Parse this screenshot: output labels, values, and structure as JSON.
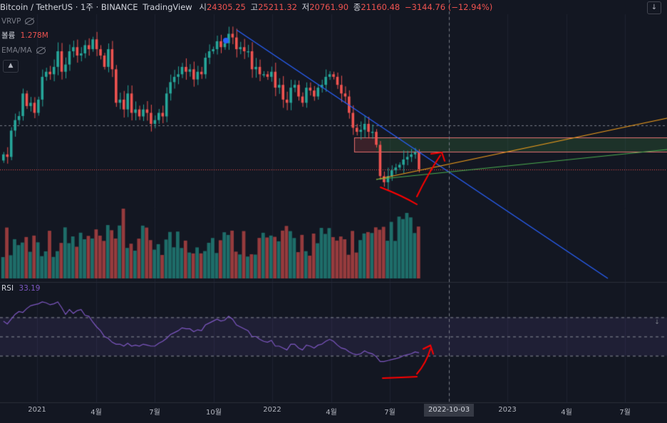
{
  "header": {
    "title": "Bitcoin / TetherUS · 1주 · BINANCE",
    "brand": "TradingView",
    "o_label": "시",
    "o_value": "24305.25",
    "h_label": "고",
    "h_value": "25211.32",
    "l_label": "저",
    "l_value": "20761.90",
    "c_label": "종",
    "c_value": "21160.48",
    "change": "−3144.76 (−12.94%)"
  },
  "indicators": {
    "vrvp": "VRVP",
    "volume_label": "볼륨",
    "volume_value": "1.278M",
    "ema": "EMA/MA",
    "rsi_label": "RSI",
    "rsi_value": "33.19"
  },
  "icons": [
    "eye-hidden-icon",
    "chevron-up-icon",
    "chevron-down-icon",
    "eye-hidden-icon"
  ],
  "colors": {
    "background": "#131722",
    "up": "#26a69a",
    "down": "#ef5350",
    "trendline": "#2962ff",
    "rsi_line": "#7e57c2",
    "orange_line": "#f7a21b",
    "green_line": "#4caf50",
    "annotation": "#ff0000"
  },
  "x_axis": {
    "labels": [
      "2021",
      "4월",
      "7월",
      "10월",
      "2022",
      "4월",
      "7월",
      "2023",
      "4월",
      "7월"
    ],
    "crosshair_label": "2022-10-03"
  },
  "chart_data": [
    {
      "type": "candlestick",
      "title": "Bitcoin / TetherUS",
      "y_scale": "log",
      "current_candle": {
        "o": 24305.25,
        "h": 25211.32,
        "l": 20761.9,
        "c": 21160.48,
        "change": -3144.76,
        "change_pct": -12.94
      },
      "close": [
        24000,
        23500,
        29300,
        32000,
        33100,
        40000,
        36000,
        37000,
        34000,
        38000,
        46000,
        48000,
        47000,
        50000,
        57000,
        48000,
        51000,
        57000,
        59000,
        55000,
        56000,
        60000,
        58000,
        63000,
        58000,
        55000,
        50000,
        58000,
        49000,
        37000,
        38000,
        35000,
        40000,
        34000,
        35000,
        33000,
        35000,
        34000,
        31000,
        32000,
        34000,
        33000,
        40000,
        44000,
        46000,
        47000,
        50000,
        48000,
        49000,
        45000,
        48000,
        47000,
        54000,
        57000,
        58000,
        62000,
        59000,
        61000,
        66000,
        64000,
        58000,
        59000,
        57000,
        57000,
        49000,
        50000,
        47000,
        47000,
        46000,
        48000,
        42000,
        43000,
        38000,
        37000,
        42000,
        43000,
        39000,
        37000,
        42000,
        41000,
        39000,
        42000,
        43000,
        46000,
        47000,
        46000,
        43000,
        40000,
        39000,
        34000,
        30000,
        29000,
        29500,
        31000,
        29000,
        29000,
        26000,
        20000,
        19000,
        20000,
        21000,
        21500,
        22000,
        23000,
        23500,
        24000,
        24400,
        21160
      ],
      "volume_scale_max": 1.0
    },
    {
      "type": "line",
      "title": "RSI",
      "current": 33.19,
      "ylim": [
        0,
        100
      ],
      "bands": [
        30,
        50,
        70
      ],
      "values": [
        66,
        63,
        68,
        73,
        76,
        75,
        79,
        82,
        83,
        84,
        86,
        85,
        83,
        84,
        86,
        80,
        73,
        78,
        74,
        77,
        78,
        72,
        71,
        65,
        60,
        56,
        50,
        48,
        44,
        42,
        42,
        40,
        43,
        40,
        41,
        40,
        42,
        41,
        40,
        40,
        43,
        45,
        48,
        52,
        54,
        56,
        59,
        58,
        58,
        55,
        57,
        56,
        62,
        64,
        66,
        68,
        66,
        67,
        71,
        68,
        62,
        60,
        58,
        56,
        50,
        50,
        47,
        45,
        44,
        46,
        40,
        40,
        38,
        36,
        42,
        42,
        38,
        36,
        41,
        40,
        38,
        41,
        42,
        45,
        47,
        45,
        41,
        38,
        37,
        34,
        32,
        31,
        32,
        35,
        33,
        32,
        29,
        24,
        24,
        25,
        26,
        27,
        28,
        30,
        31,
        32,
        34,
        33
      ]
    }
  ]
}
